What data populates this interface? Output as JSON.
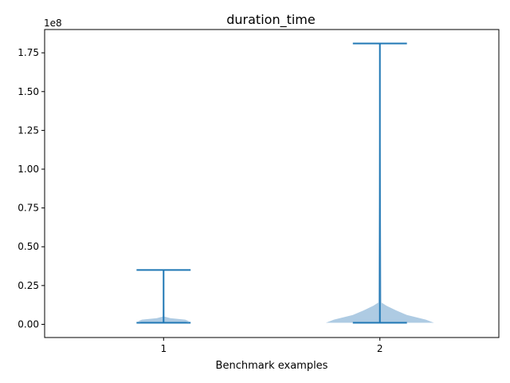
{
  "chart_data": {
    "type": "violin",
    "title": "duration_time",
    "xlabel": "Benchmark examples",
    "ylabel": "",
    "offset_text": "1e8",
    "x": [
      1,
      2
    ],
    "x_tick_labels": [
      "1",
      "2"
    ],
    "xlim": [
      0.45,
      2.55
    ],
    "ylim": [
      -8500000,
      190000000
    ],
    "y_ticks": [
      0,
      25000000,
      50000000,
      75000000,
      100000000,
      125000000,
      150000000,
      175000000
    ],
    "y_tick_labels": [
      "0.00",
      "0.25",
      "0.50",
      "0.75",
      "1.00",
      "1.25",
      "1.50",
      "1.75"
    ],
    "grid": false,
    "colors": {
      "body": "#aecbe3",
      "lines": "#1f77b4",
      "axes": "#000000"
    },
    "violins": [
      {
        "x": 1,
        "min": 1000000,
        "median": 1200000,
        "max": 35000000,
        "density_width": 0.25,
        "profile": [
          [
            1000000,
            0.7
          ],
          [
            2000000,
            0.95
          ],
          [
            3000000,
            0.8
          ],
          [
            4000000,
            0.25
          ],
          [
            5000000,
            0.03
          ],
          [
            35000000,
            0.0
          ]
        ]
      },
      {
        "x": 2,
        "min": 1000000,
        "median": 1200000,
        "max": 181000000,
        "density_width": 0.5,
        "profile": [
          [
            1000000,
            1.0
          ],
          [
            3000000,
            0.85
          ],
          [
            6000000,
            0.5
          ],
          [
            9000000,
            0.3
          ],
          [
            12000000,
            0.12
          ],
          [
            14000000,
            0.03
          ],
          [
            181000000,
            0.0
          ]
        ]
      }
    ]
  }
}
